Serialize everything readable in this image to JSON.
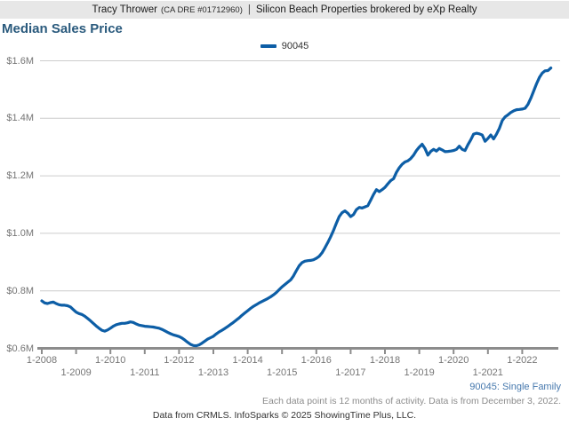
{
  "header": {
    "agent": "Tracy Thrower",
    "license": "(CA DRE #01712960)",
    "separator": "|",
    "brokerage": "Silicon Beach Properties brokered by eXp Realty"
  },
  "title": "Median Sales Price",
  "legend": {
    "items": [
      {
        "label": "90045",
        "color": "#0d5ea6"
      }
    ]
  },
  "footer": {
    "series_note": "90045: Single Family",
    "data_note": "Each data point is 12 months of activity. Data is from December 3, 2022.",
    "attribution": "Data from CRMLS. InfoSparks © 2025 ShowingTime Plus, LLC."
  },
  "chart_data": {
    "type": "line",
    "title": "Median Sales Price",
    "unit": "$M",
    "grid": true,
    "legend_position": "top-center",
    "line_color": "#0d5ea6",
    "axis_color": "#8c8c8c",
    "grid_color": "#cccccc",
    "label_color": "#757575",
    "y_axis": {
      "range": [
        0.6,
        1.65
      ],
      "ticks": [
        {
          "label": "$1.6M",
          "value": 1.6
        },
        {
          "label": "$1.4M",
          "value": 1.4
        },
        {
          "label": "$1.2M",
          "value": 1.2
        },
        {
          "label": "$1.0M",
          "value": 1.0
        },
        {
          "label": "$0.8M",
          "value": 0.8
        },
        {
          "label": "$0.6M",
          "value": 0.6
        }
      ]
    },
    "x_axis": {
      "start_year": 2008,
      "end_year": 2022,
      "tick_labels": [
        "1-2008",
        "1-2009",
        "1-2010",
        "1-2011",
        "1-2012",
        "1-2013",
        "1-2014",
        "1-2015",
        "1-2016",
        "1-2017",
        "1-2018",
        "1-2019",
        "1-2020",
        "1-2021",
        "1-2022"
      ],
      "stagger": true
    },
    "series": [
      {
        "name": "90045",
        "start": "2008-01",
        "end": "2022-11",
        "interval": "monthly",
        "values": [
          0.765,
          0.758,
          0.756,
          0.759,
          0.761,
          0.756,
          0.752,
          0.75,
          0.75,
          0.748,
          0.744,
          0.735,
          0.726,
          0.721,
          0.718,
          0.712,
          0.704,
          0.696,
          0.687,
          0.678,
          0.67,
          0.663,
          0.66,
          0.664,
          0.67,
          0.677,
          0.682,
          0.685,
          0.687,
          0.687,
          0.689,
          0.692,
          0.69,
          0.685,
          0.681,
          0.679,
          0.677,
          0.676,
          0.675,
          0.674,
          0.672,
          0.67,
          0.666,
          0.661,
          0.656,
          0.651,
          0.647,
          0.644,
          0.641,
          0.636,
          0.629,
          0.621,
          0.614,
          0.61,
          0.609,
          0.612,
          0.618,
          0.625,
          0.632,
          0.637,
          0.642,
          0.65,
          0.657,
          0.663,
          0.669,
          0.676,
          0.683,
          0.69,
          0.698,
          0.706,
          0.715,
          0.723,
          0.731,
          0.739,
          0.746,
          0.752,
          0.758,
          0.763,
          0.768,
          0.773,
          0.779,
          0.786,
          0.794,
          0.804,
          0.814,
          0.822,
          0.83,
          0.838,
          0.852,
          0.87,
          0.887,
          0.898,
          0.903,
          0.905,
          0.906,
          0.908,
          0.913,
          0.92,
          0.932,
          0.949,
          0.968,
          0.988,
          1.01,
          1.035,
          1.058,
          1.072,
          1.078,
          1.07,
          1.058,
          1.065,
          1.082,
          1.09,
          1.088,
          1.092,
          1.096,
          1.115,
          1.135,
          1.152,
          1.145,
          1.152,
          1.16,
          1.172,
          1.183,
          1.19,
          1.212,
          1.228,
          1.24,
          1.248,
          1.252,
          1.26,
          1.272,
          1.288,
          1.3,
          1.31,
          1.295,
          1.272,
          1.285,
          1.292,
          1.286,
          1.295,
          1.29,
          1.284,
          1.285,
          1.286,
          1.288,
          1.292,
          1.303,
          1.292,
          1.288,
          1.308,
          1.325,
          1.345,
          1.348,
          1.346,
          1.342,
          1.32,
          1.33,
          1.342,
          1.328,
          1.345,
          1.365,
          1.392,
          1.405,
          1.412,
          1.42,
          1.426,
          1.43,
          1.431,
          1.432,
          1.435,
          1.448,
          1.47,
          1.495,
          1.52,
          1.542,
          1.557,
          1.565,
          1.566,
          1.575
        ]
      }
    ]
  }
}
